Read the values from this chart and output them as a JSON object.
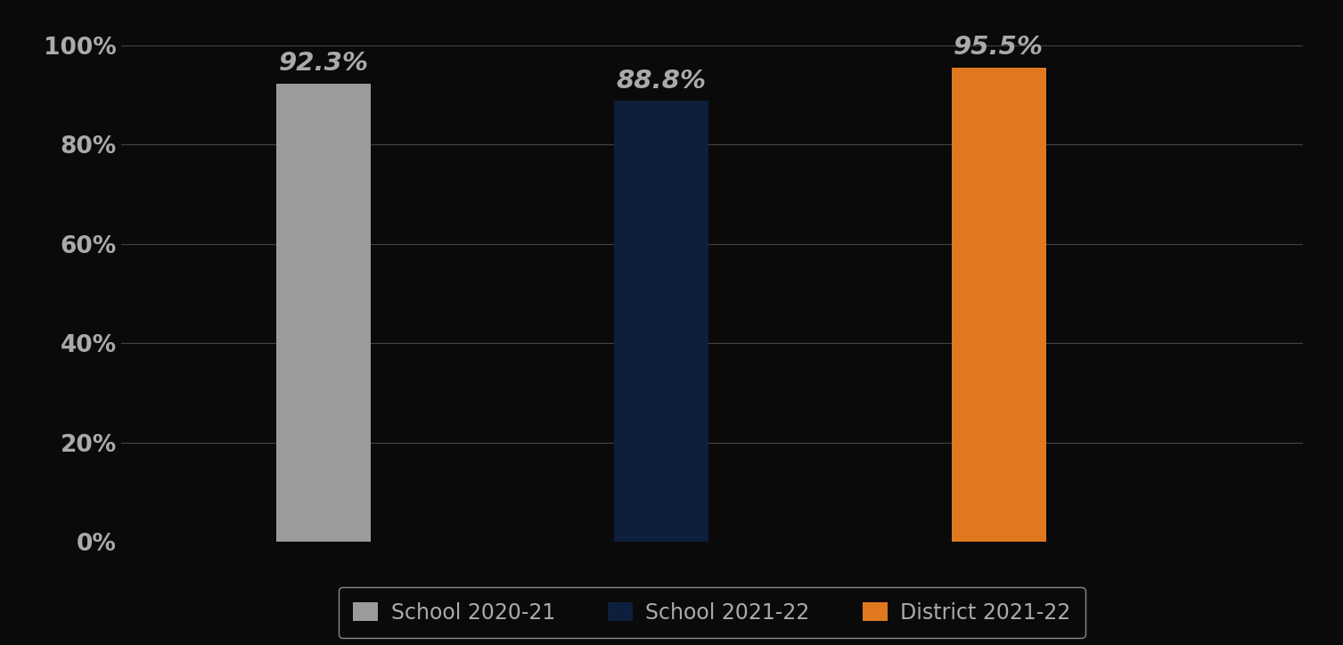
{
  "categories": [
    "School 2020-21",
    "School 2021-22",
    "District 2021-22"
  ],
  "values": [
    92.3,
    88.8,
    95.5
  ],
  "bar_colors": [
    "#9b9b9b",
    "#0d1f3c",
    "#e07820"
  ],
  "labels": [
    "92.3%",
    "88.8%",
    "95.5%"
  ],
  "ylim": [
    0,
    100
  ],
  "yticks": [
    0,
    20,
    40,
    60,
    80,
    100
  ],
  "ytick_labels": [
    "0%",
    "20%",
    "40%",
    "60%",
    "80%",
    "100%"
  ],
  "background_color": "#0a0a0a",
  "text_color": "#aaaaaa",
  "grid_color": "#444444",
  "label_fontsize": 21,
  "tick_fontsize": 19,
  "legend_fontsize": 17,
  "bar_width": 0.28,
  "bar_positions": [
    1,
    2,
    3
  ],
  "xlim": [
    0.4,
    3.9
  ]
}
